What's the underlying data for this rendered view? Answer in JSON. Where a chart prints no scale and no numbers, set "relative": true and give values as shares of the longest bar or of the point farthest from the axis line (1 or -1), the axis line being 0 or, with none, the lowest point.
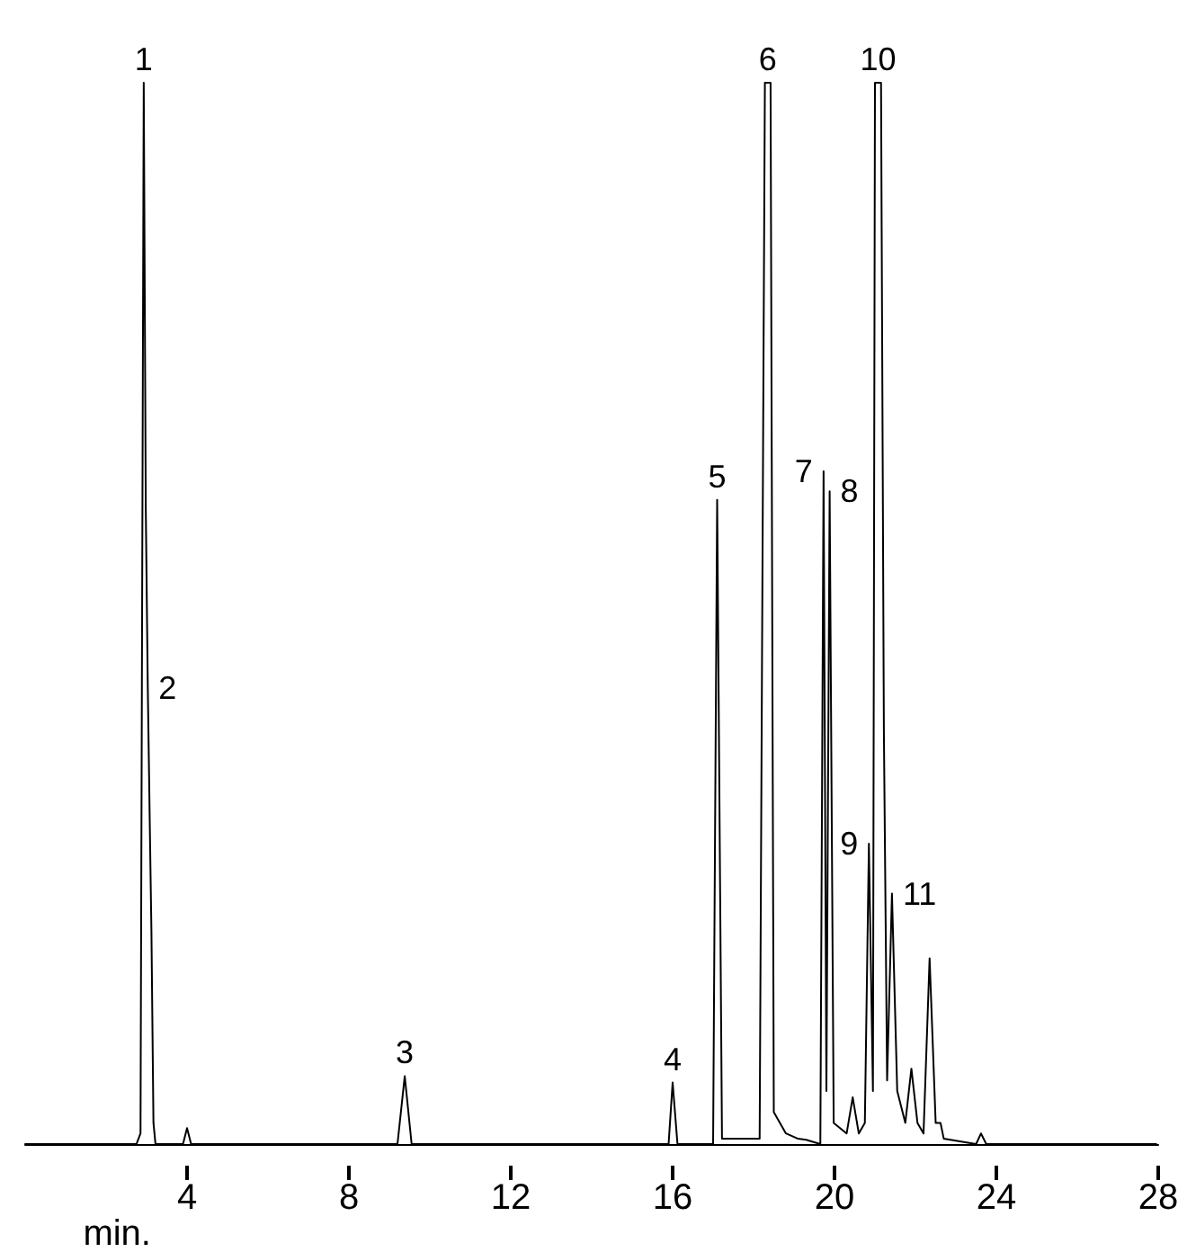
{
  "chart_data": {
    "type": "line",
    "relative": true,
    "xlabel": "min.",
    "xlim": [
      0,
      28
    ],
    "xticks": [
      4,
      8,
      12,
      16,
      20,
      24,
      28
    ],
    "grid": false,
    "marker": "none",
    "line_style": "solid",
    "series": [
      {
        "color": "#000000",
        "x": [
          0,
          2.75,
          2.85,
          2.93,
          2.98,
          3.03,
          3.08,
          3.12,
          3.17,
          3.22,
          3.9,
          4.0,
          4.1,
          9.2,
          9.38,
          9.55,
          15.9,
          16.0,
          16.12,
          17.0,
          17.1,
          17.22,
          18.15,
          18.28,
          18.42,
          18.5,
          18.8,
          19.1,
          19.3,
          19.65,
          19.73,
          19.8,
          19.88,
          19.98,
          20.3,
          20.45,
          20.6,
          20.75,
          20.85,
          20.95,
          21.0,
          21.15,
          21.22,
          21.3,
          21.42,
          21.55,
          21.75,
          21.9,
          22.05,
          22.2,
          22.35,
          22.5,
          22.62,
          22.7,
          23.5,
          23.62,
          23.75,
          27.95
        ],
        "values": [
          0,
          0,
          0.01,
          1,
          0.6,
          0.43,
          0.3,
          0.2,
          0.02,
          0,
          0,
          0.015,
          0,
          0,
          0.064,
          0,
          0,
          0.058,
          0,
          0,
          0.607,
          0.005,
          0.005,
          1,
          1,
          0.03,
          0.01,
          0.005,
          0.004,
          0,
          0.634,
          0.05,
          0.615,
          0.02,
          0.01,
          0.044,
          0.01,
          0.02,
          0.283,
          0.05,
          1,
          1,
          0.39,
          0.06,
          0.236,
          0.05,
          0.02,
          0.071,
          0.02,
          0.01,
          0.175,
          0.02,
          0.02,
          0.005,
          0,
          0.01,
          0,
          0
        ]
      }
    ],
    "annotations": [
      {
        "text": "1",
        "x": 2.93,
        "y": 1
      },
      {
        "text": "2",
        "x": 3.03,
        "y": 0.43
      },
      {
        "text": "3",
        "x": 9.38,
        "y": 0.064
      },
      {
        "text": "4",
        "x": 16.0,
        "y": 0.058
      },
      {
        "text": "5",
        "x": 17.1,
        "y": 0.607
      },
      {
        "text": "6",
        "x": 18.35,
        "y": 1
      },
      {
        "text": "7",
        "x": 19.73,
        "y": 0.634
      },
      {
        "text": "8",
        "x": 19.88,
        "y": 0.615
      },
      {
        "text": "9",
        "x": 20.85,
        "y": 0.283
      },
      {
        "text": "10",
        "x": 21.08,
        "y": 1
      },
      {
        "text": "11",
        "x": 21.42,
        "y": 0.236
      }
    ]
  }
}
